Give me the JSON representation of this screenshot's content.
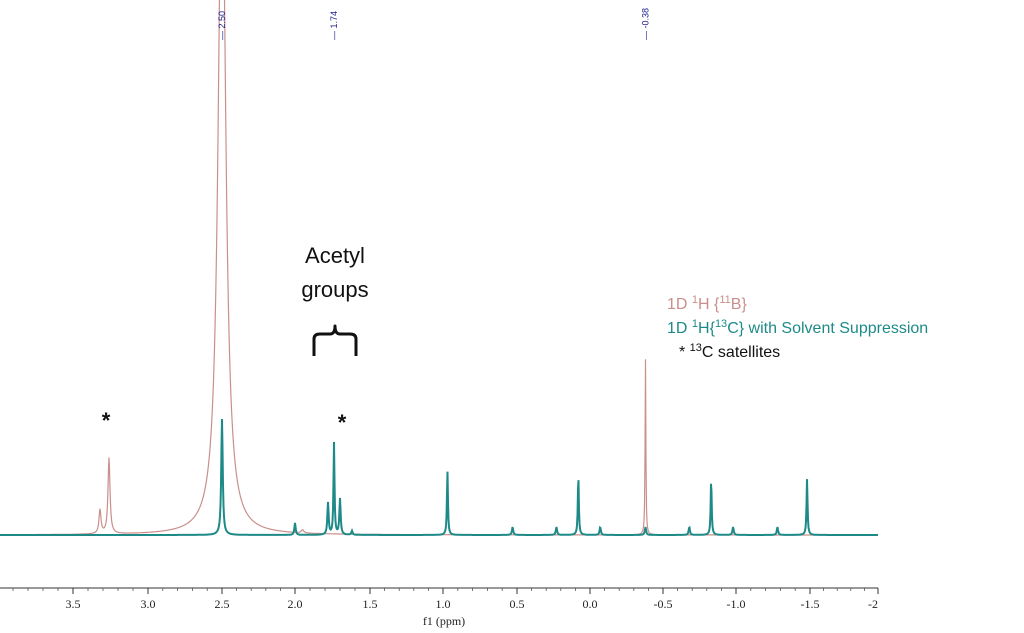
{
  "chart_data": {
    "type": "line",
    "title": "",
    "xlabel": "f1 (ppm)",
    "ylabel": "",
    "x_reversed": true,
    "xlim": [
      4.0,
      -2.0
    ],
    "ylim": [
      0,
      1.0
    ],
    "grid": false,
    "x_ticks": [
      {
        "value": 3.5,
        "label": "3.5"
      },
      {
        "value": 3.0,
        "label": "3.0"
      },
      {
        "value": 2.5,
        "label": "2.5"
      },
      {
        "value": 2.0,
        "label": "2.0"
      },
      {
        "value": 1.5,
        "label": "1.5"
      },
      {
        "value": 1.0,
        "label": "1.0"
      },
      {
        "value": 0.5,
        "label": "0.5"
      },
      {
        "value": 0.0,
        "label": "0.0"
      },
      {
        "value": -0.5,
        "label": "-0.5"
      },
      {
        "value": -1.0,
        "label": "-1.0"
      },
      {
        "value": -1.5,
        "label": "-1.5"
      },
      {
        "value": -2.0,
        "label": "-2"
      }
    ],
    "peak_labels": [
      {
        "ppm": 2.5,
        "label": "2.50"
      },
      {
        "ppm": 1.74,
        "label": "1.74"
      },
      {
        "ppm": -0.38,
        "label": "-0.38"
      }
    ],
    "series": [
      {
        "name": "1D 1H {11B}",
        "color": "#c98f8b",
        "peaks": [
          {
            "ppm": 2.5,
            "height": 1.8,
            "width": 0.03
          },
          {
            "ppm": 3.26,
            "height": 0.19,
            "width": 0.008
          },
          {
            "ppm": 3.32,
            "height": 0.06,
            "width": 0.008
          },
          {
            "ppm": -0.38,
            "height": 0.44,
            "width": 0.003
          },
          {
            "ppm": 1.95,
            "height": 0.008,
            "width": 0.01
          }
        ]
      },
      {
        "name": "1D 1H{13C} with Solvent Suppression",
        "color": "#1e8a88",
        "peaks": [
          {
            "ppm": 2.5,
            "height": 0.29,
            "width": 0.006
          },
          {
            "ppm": 2.0,
            "height": 0.03,
            "width": 0.005
          },
          {
            "ppm": 1.78,
            "height": 0.08,
            "width": 0.005
          },
          {
            "ppm": 1.74,
            "height": 0.23,
            "width": 0.004
          },
          {
            "ppm": 1.7,
            "height": 0.09,
            "width": 0.005
          },
          {
            "ppm": 1.62,
            "height": 0.01,
            "width": 0.005
          },
          {
            "ppm": 0.97,
            "height": 0.16,
            "width": 0.004
          },
          {
            "ppm": 0.53,
            "height": 0.02,
            "width": 0.005
          },
          {
            "ppm": 0.23,
            "height": 0.02,
            "width": 0.005
          },
          {
            "ppm": 0.08,
            "height": 0.15,
            "width": 0.004
          },
          {
            "ppm": -0.07,
            "height": 0.02,
            "width": 0.005
          },
          {
            "ppm": -0.38,
            "height": 0.02,
            "width": 0.005
          },
          {
            "ppm": -0.68,
            "height": 0.02,
            "width": 0.005
          },
          {
            "ppm": -0.83,
            "height": 0.14,
            "width": 0.004
          },
          {
            "ppm": -0.98,
            "height": 0.02,
            "width": 0.005
          },
          {
            "ppm": -1.28,
            "height": 0.02,
            "width": 0.005
          },
          {
            "ppm": -1.48,
            "height": 0.14,
            "width": 0.004
          }
        ]
      }
    ],
    "annotations": {
      "acetyl_line1": "Acetyl",
      "acetyl_line2": "groups",
      "star_left": "*",
      "star_right": "*"
    },
    "legend": {
      "placement": "right",
      "entries": [
        {
          "prefix": "1D ",
          "sup1": "1",
          "mid": "H {",
          "sup2": "11",
          "suffix": "B}",
          "color": "#c98f8b"
        },
        {
          "prefix": "1D ",
          "sup1": "1",
          "mid": "H{",
          "sup2": "13",
          "suffix": "C} with Solvent Suppression",
          "color": "#1e8a88"
        },
        {
          "prefix": "* ",
          "sup1": "13",
          "mid": "C satellites",
          "sup2": "",
          "suffix": "",
          "color": "#111111"
        }
      ]
    }
  }
}
